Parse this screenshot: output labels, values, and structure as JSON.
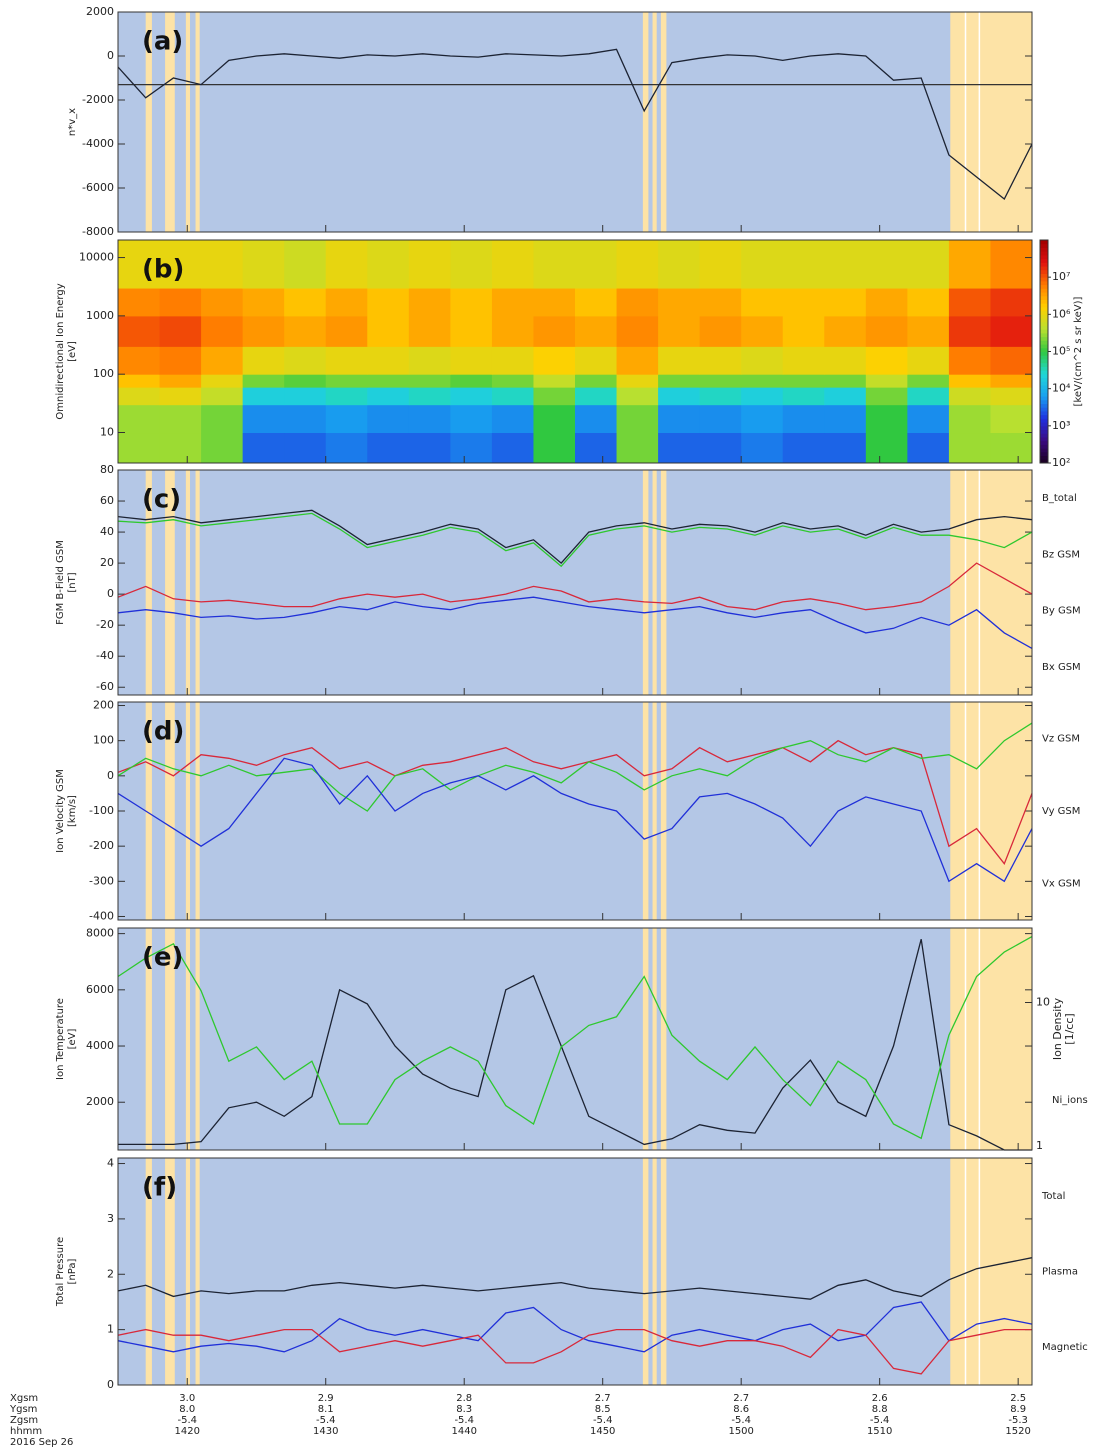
{
  "time": {
    "x": [
      15,
      17,
      19,
      21,
      23,
      25,
      27,
      29,
      31,
      33,
      35,
      37,
      39,
      41,
      43,
      45,
      47,
      49,
      51,
      53,
      55,
      57,
      59,
      61,
      63,
      65,
      67,
      69,
      71,
      73,
      75,
      77,
      79,
      81
    ],
    "xlim": [
      15,
      81
    ],
    "xticks": [
      {
        "value": 20,
        "label": "1420"
      },
      {
        "value": 30,
        "label": "1430"
      },
      {
        "value": 40,
        "label": "1440"
      },
      {
        "value": 50,
        "label": "1450"
      },
      {
        "value": 60,
        "label": "1500"
      },
      {
        "value": 70,
        "label": "1510"
      },
      {
        "value": 80,
        "label": "1520"
      }
    ],
    "rows": [
      {
        "name": "Xgsm",
        "values": [
          "3.0",
          "2.9",
          "2.8",
          "2.7",
          "2.7",
          "2.6",
          "2.5"
        ]
      },
      {
        "name": "Ygsm",
        "values": [
          "8.0",
          "8.1",
          "8.3",
          "8.5",
          "8.6",
          "8.8",
          "8.9"
        ]
      },
      {
        "name": "Zgsm",
        "values": [
          "-5.4",
          "-5.4",
          "-5.4",
          "-5.4",
          "-5.4",
          "-5.4",
          "-5.3"
        ]
      }
    ],
    "hhmm_label": "hhmm",
    "date": "2016 Sep 26"
  },
  "shading": {
    "background": "#b4c7e6",
    "highlight": "#fde3a6",
    "intervals": [
      [
        17.0,
        17.45
      ],
      [
        18.4,
        19.1
      ],
      [
        19.9,
        20.2
      ],
      [
        20.6,
        20.9
      ],
      [
        52.9,
        53.3
      ],
      [
        53.6,
        53.9
      ],
      [
        54.2,
        54.6
      ],
      [
        75.1,
        81
      ]
    ],
    "dividers": [
      76.2,
      77.2
    ]
  },
  "chart_data": [
    {
      "type": "line",
      "panel_label": "(a)",
      "ylabel": [
        "n*v_x"
      ],
      "ylim": [
        -8000,
        2000
      ],
      "yticks": [
        -8000,
        -6000,
        -4000,
        -2000,
        0,
        2000
      ],
      "reference_line": -1300,
      "series": [
        {
          "color": "#1c2333",
          "values": [
            -500,
            -1900,
            -1000,
            -1300,
            -200,
            0,
            100,
            0,
            -100,
            50,
            0,
            100,
            0,
            -50,
            100,
            50,
            0,
            100,
            300,
            -2500,
            -300,
            -100,
            50,
            0,
            -200,
            0,
            100,
            0,
            -1100,
            -1000,
            -4500,
            -5500,
            -6500,
            -4000
          ]
        }
      ]
    },
    {
      "type": "heatmap",
      "panel_label": "(b)",
      "ylabel": [
        "Omnidirectional Ion Energy",
        "[eV]"
      ],
      "log_y": true,
      "ylim": [
        3,
        20000
      ],
      "yticks": [
        10,
        100,
        1000,
        10000
      ],
      "x_edges": [
        15,
        18,
        21,
        24,
        27,
        30,
        33,
        36,
        39,
        42,
        45,
        48,
        51,
        54,
        57,
        60,
        63,
        66,
        69,
        72,
        75,
        78,
        81
      ],
      "y_edges": [
        3,
        10,
        30,
        60,
        100,
        300,
        1000,
        3000,
        20000
      ],
      "z": [
        [
          300000.0,
          300000.0,
          200000.0,
          3000.0,
          3000.0,
          4000.0,
          3000.0,
          3000.0,
          4000.0,
          3000.0,
          100000.0,
          3000.0,
          200000.0,
          3000.0,
          3000.0,
          4000.0,
          3000.0,
          3000.0,
          100000.0,
          3000.0,
          300000.0,
          300000.0
        ],
        [
          300000.0,
          300000.0,
          200000.0,
          5000.0,
          5000.0,
          6000.0,
          5000.0,
          5000.0,
          6000.0,
          5000.0,
          100000.0,
          5000.0,
          200000.0,
          5000.0,
          5000.0,
          6000.0,
          5000.0,
          5000.0,
          100000.0,
          5000.0,
          300000.0,
          400000.0
        ],
        [
          800000.0,
          1000000.0,
          500000.0,
          20000.0,
          20000.0,
          30000.0,
          20000.0,
          30000.0,
          20000.0,
          30000.0,
          200000.0,
          30000.0,
          400000.0,
          20000.0,
          30000.0,
          20000.0,
          30000.0,
          20000.0,
          200000.0,
          30000.0,
          600000.0,
          800000.0
        ],
        [
          2000000.0,
          3000000.0,
          1000000.0,
          200000.0,
          150000.0,
          200000.0,
          200000.0,
          200000.0,
          150000.0,
          200000.0,
          500000.0,
          200000.0,
          1000000.0,
          200000.0,
          200000.0,
          200000.0,
          200000.0,
          200000.0,
          500000.0,
          200000.0,
          2000000.0,
          3000000.0
        ],
        [
          5000000.0,
          6000000.0,
          3000000.0,
          1000000.0,
          800000.0,
          1000000.0,
          1000000.0,
          800000.0,
          1000000.0,
          1000000.0,
          1500000.0,
          1000000.0,
          3000000.0,
          1000000.0,
          1000000.0,
          800000.0,
          1000000.0,
          1000000.0,
          1500000.0,
          1000000.0,
          6000000.0,
          8000000.0
        ],
        [
          10000000.0,
          12000000.0,
          6000000.0,
          4000000.0,
          3000000.0,
          4000000.0,
          2000000.0,
          3000000.0,
          2000000.0,
          3000000.0,
          4000000.0,
          3000000.0,
          5000000.0,
          3000000.0,
          4000000.0,
          3000000.0,
          2000000.0,
          3000000.0,
          4000000.0,
          3000000.0,
          15000000.0,
          20000000.0
        ],
        [
          5000000.0,
          6000000.0,
          4000000.0,
          3000000.0,
          2000000.0,
          3000000.0,
          2000000.0,
          3000000.0,
          2000000.0,
          3000000.0,
          3000000.0,
          2000000.0,
          4000000.0,
          3000000.0,
          3000000.0,
          2000000.0,
          2000000.0,
          2000000.0,
          3000000.0,
          2000000.0,
          10000000.0,
          15000000.0
        ],
        [
          1000000.0,
          1000000.0,
          1000000.0,
          800000.0,
          600000.0,
          1000000.0,
          800000.0,
          1000000.0,
          800000.0,
          1000000.0,
          800000.0,
          800000.0,
          1000000.0,
          800000.0,
          1000000.0,
          800000.0,
          800000.0,
          800000.0,
          800000.0,
          800000.0,
          3000000.0,
          5000000.0
        ]
      ],
      "zlim": [
        100,
        100000000.0
      ],
      "zticks": [
        {
          "value": 100,
          "label": "10²"
        },
        {
          "value": 1000,
          "label": "10³"
        },
        {
          "value": 10000,
          "label": "10⁴"
        },
        {
          "value": 100000,
          "label": "10⁵"
        },
        {
          "value": 1000000,
          "label": "10⁶"
        },
        {
          "value": 10000000,
          "label": "10⁷"
        }
      ],
      "zlabel": "[keV/(cm^2 s sr keV)]",
      "colormap": [
        "#1a0020",
        "#3a0a80",
        "#2030e0",
        "#18a0f0",
        "#20d8d8",
        "#30c840",
        "#b8e030",
        "#ffd000",
        "#ff7a00",
        "#e01010",
        "#a00000"
      ]
    },
    {
      "type": "line",
      "panel_label": "(c)",
      "ylabel": [
        "FGM B-Field GSM",
        "[nT]"
      ],
      "ylim": [
        -65,
        80
      ],
      "yticks": [
        -60,
        -40,
        -20,
        0,
        20,
        40,
        60,
        80
      ],
      "series": [
        {
          "name": "B_total",
          "color": "#1c2333",
          "values": [
            50,
            48,
            50,
            46,
            48,
            50,
            52,
            54,
            44,
            32,
            36,
            40,
            45,
            42,
            30,
            35,
            20,
            40,
            44,
            46,
            42,
            45,
            44,
            40,
            46,
            42,
            44,
            38,
            45,
            40,
            42,
            48,
            50,
            48
          ]
        },
        {
          "name": "Bz GSM",
          "color": "#d8283a",
          "values": [
            -2,
            5,
            -3,
            -5,
            -4,
            -6,
            -8,
            -8,
            -3,
            0,
            -2,
            0,
            -5,
            -3,
            0,
            5,
            2,
            -5,
            -3,
            -5,
            -6,
            -2,
            -8,
            -10,
            -5,
            -3,
            -6,
            -10,
            -8,
            -5,
            5,
            20,
            10,
            0
          ]
        },
        {
          "name": "By GSM",
          "color": "#2ec82e",
          "values": [
            47,
            46,
            48,
            44,
            46,
            48,
            50,
            52,
            42,
            30,
            34,
            38,
            43,
            40,
            28,
            33,
            18,
            38,
            42,
            44,
            40,
            43,
            42,
            38,
            44,
            40,
            42,
            36,
            43,
            38,
            38,
            35,
            30,
            40
          ]
        },
        {
          "name": "Bx GSM",
          "color": "#2030d8",
          "values": [
            -12,
            -10,
            -12,
            -15,
            -14,
            -16,
            -15,
            -12,
            -8,
            -10,
            -5,
            -8,
            -10,
            -6,
            -4,
            -2,
            -5,
            -8,
            -10,
            -12,
            -10,
            -8,
            -12,
            -15,
            -12,
            -10,
            -18,
            -25,
            -22,
            -15,
            -20,
            -10,
            -25,
            -35
          ]
        }
      ]
    },
    {
      "type": "line",
      "panel_label": "(d)",
      "ylabel": [
        "Ion Velocity GSM",
        "[km/s]"
      ],
      "ylim": [
        -410,
        210
      ],
      "yticks": [
        -400,
        -300,
        -200,
        -100,
        0,
        100,
        200
      ],
      "series": [
        {
          "name": "Vz GSM",
          "color": "#d8283a",
          "values": [
            10,
            40,
            0,
            60,
            50,
            30,
            60,
            80,
            20,
            40,
            0,
            30,
            40,
            60,
            80,
            40,
            20,
            40,
            60,
            0,
            20,
            80,
            40,
            60,
            80,
            40,
            100,
            60,
            80,
            60,
            -200,
            -150,
            -250,
            -50
          ]
        },
        {
          "name": "Vy GSM",
          "color": "#2ec82e",
          "values": [
            0,
            50,
            20,
            0,
            30,
            0,
            10,
            20,
            -50,
            -100,
            0,
            20,
            -40,
            0,
            30,
            10,
            -20,
            40,
            10,
            -40,
            0,
            20,
            0,
            50,
            80,
            100,
            60,
            40,
            80,
            50,
            60,
            20,
            100,
            150
          ]
        },
        {
          "name": "Vx GSM",
          "color": "#2030d8",
          "values": [
            -50,
            -100,
            -150,
            -200,
            -150,
            -50,
            50,
            30,
            -80,
            0,
            -100,
            -50,
            -20,
            0,
            -40,
            0,
            -50,
            -80,
            -100,
            -180,
            -150,
            -60,
            -50,
            -80,
            -120,
            -200,
            -100,
            -60,
            -80,
            -100,
            -300,
            -250,
            -300,
            -150
          ]
        }
      ]
    },
    {
      "type": "line",
      "panel_label": "(e)",
      "ylabel": [
        "Ion Temperature",
        "[eV]"
      ],
      "ylim": [
        300,
        8200
      ],
      "yticks": [
        2000,
        4000,
        6000,
        8000
      ],
      "y2lim": [
        1,
        32
      ],
      "y2ticks": [
        1,
        10
      ],
      "y2log": true,
      "y2label": [
        "Ion Density",
        "[1/cc]"
      ],
      "series": [
        {
          "color": "#1c2333",
          "values": [
            500,
            500,
            500,
            600,
            1800,
            2000,
            1500,
            2200,
            6000,
            5500,
            4000,
            3000,
            2500,
            2200,
            6000,
            6500,
            4000,
            1500,
            1000,
            500,
            700,
            1200,
            1000,
            900,
            2500,
            3500,
            2000,
            1500,
            4000,
            7800,
            1200,
            800,
            300,
            300
          ]
        },
        {
          "name": "Ni_ions",
          "color": "#2ec82e",
          "axis": "y2",
          "values": [
            15,
            20,
            25,
            12,
            4,
            5,
            3,
            4,
            1.5,
            1.5,
            3,
            4,
            5,
            4,
            2,
            1.5,
            5,
            7,
            8,
            15,
            6,
            4,
            3,
            5,
            3,
            2,
            4,
            3,
            1.5,
            1.2,
            6,
            15,
            22,
            28
          ]
        }
      ]
    },
    {
      "type": "line",
      "panel_label": "(f)",
      "ylabel": [
        "Total Pressure",
        "[nPa]"
      ],
      "ylim": [
        0,
        4.1
      ],
      "yticks": [
        0,
        1,
        2,
        3,
        4
      ],
      "series": [
        {
          "name": "Total",
          "color": "#1c2333",
          "values": [
            1.7,
            1.8,
            1.6,
            1.7,
            1.65,
            1.7,
            1.7,
            1.8,
            1.85,
            1.8,
            1.75,
            1.8,
            1.75,
            1.7,
            1.75,
            1.8,
            1.85,
            1.75,
            1.7,
            1.65,
            1.7,
            1.75,
            1.7,
            1.65,
            1.6,
            1.55,
            1.8,
            1.9,
            1.7,
            1.6,
            1.9,
            2.1,
            2.2,
            2.3
          ]
        },
        {
          "name": "Plasma",
          "color": "#2030d8",
          "values": [
            0.8,
            0.7,
            0.6,
            0.7,
            0.75,
            0.7,
            0.6,
            0.8,
            1.2,
            1.0,
            0.9,
            1.0,
            0.9,
            0.8,
            1.3,
            1.4,
            1.0,
            0.8,
            0.7,
            0.6,
            0.9,
            1.0,
            0.9,
            0.8,
            1.0,
            1.1,
            0.8,
            0.9,
            1.4,
            1.5,
            0.8,
            1.1,
            1.2,
            1.1
          ]
        },
        {
          "name": "Magnetic",
          "color": "#d8283a",
          "values": [
            0.9,
            1.0,
            0.9,
            0.9,
            0.8,
            0.9,
            1.0,
            1.0,
            0.6,
            0.7,
            0.8,
            0.7,
            0.8,
            0.9,
            0.4,
            0.4,
            0.6,
            0.9,
            1.0,
            1.0,
            0.8,
            0.7,
            0.8,
            0.8,
            0.7,
            0.5,
            1.0,
            0.9,
            0.3,
            0.2,
            0.8,
            0.9,
            1.0,
            1.0
          ]
        }
      ]
    }
  ]
}
